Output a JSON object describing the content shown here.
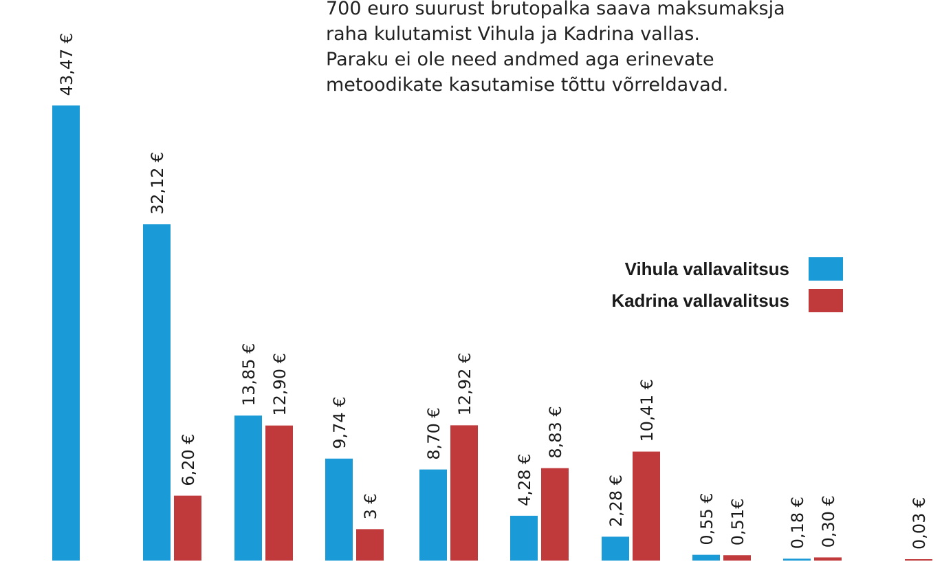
{
  "description_lines": [
    "700 euro suurust brutopalka saava maksumaksja",
    "raha kulutamist Vihula ja Kadrina vallas.",
    "Paraku ei ole need andmed aga erinevate",
    "metoodikate kasutamise tõttu võrreldavad."
  ],
  "legend": [
    {
      "label": "Vihula vallavalitsus",
      "color": "#1a9bd7"
    },
    {
      "label": "Kadrina vallavalitsus",
      "color": "#c0393b"
    }
  ],
  "chart_data": {
    "type": "bar",
    "categories": [
      "",
      "",
      "",
      "",
      "",
      "",
      "",
      "",
      "",
      ""
    ],
    "series": [
      {
        "name": "Vihula vallavalitsus",
        "color": "#1a9bd7",
        "values": [
          43.47,
          32.12,
          13.85,
          9.74,
          8.7,
          4.28,
          2.28,
          0.55,
          0.18,
          null
        ],
        "labels": [
          "43,47 €",
          "32,12 €",
          "13,85 €",
          "9,74 €",
          "8,70 €",
          "4,28 €",
          "2,28 €",
          "0,55 €",
          "0,18 €",
          ""
        ]
      },
      {
        "name": "Kadrina vallavalitsus",
        "color": "#c0393b",
        "values": [
          null,
          6.2,
          12.9,
          3,
          12.92,
          8.83,
          10.41,
          0.51,
          0.3,
          0.03
        ],
        "labels": [
          "",
          "6,20 €",
          "12,90 €",
          "3 €",
          "12,92 €",
          "8,83 €",
          "10,41 €",
          "0,51€",
          "0,30 €",
          "0,03 €"
        ]
      }
    ],
    "title": "",
    "xlabel": "",
    "ylabel": "",
    "grid": false,
    "legend_position": "right"
  }
}
